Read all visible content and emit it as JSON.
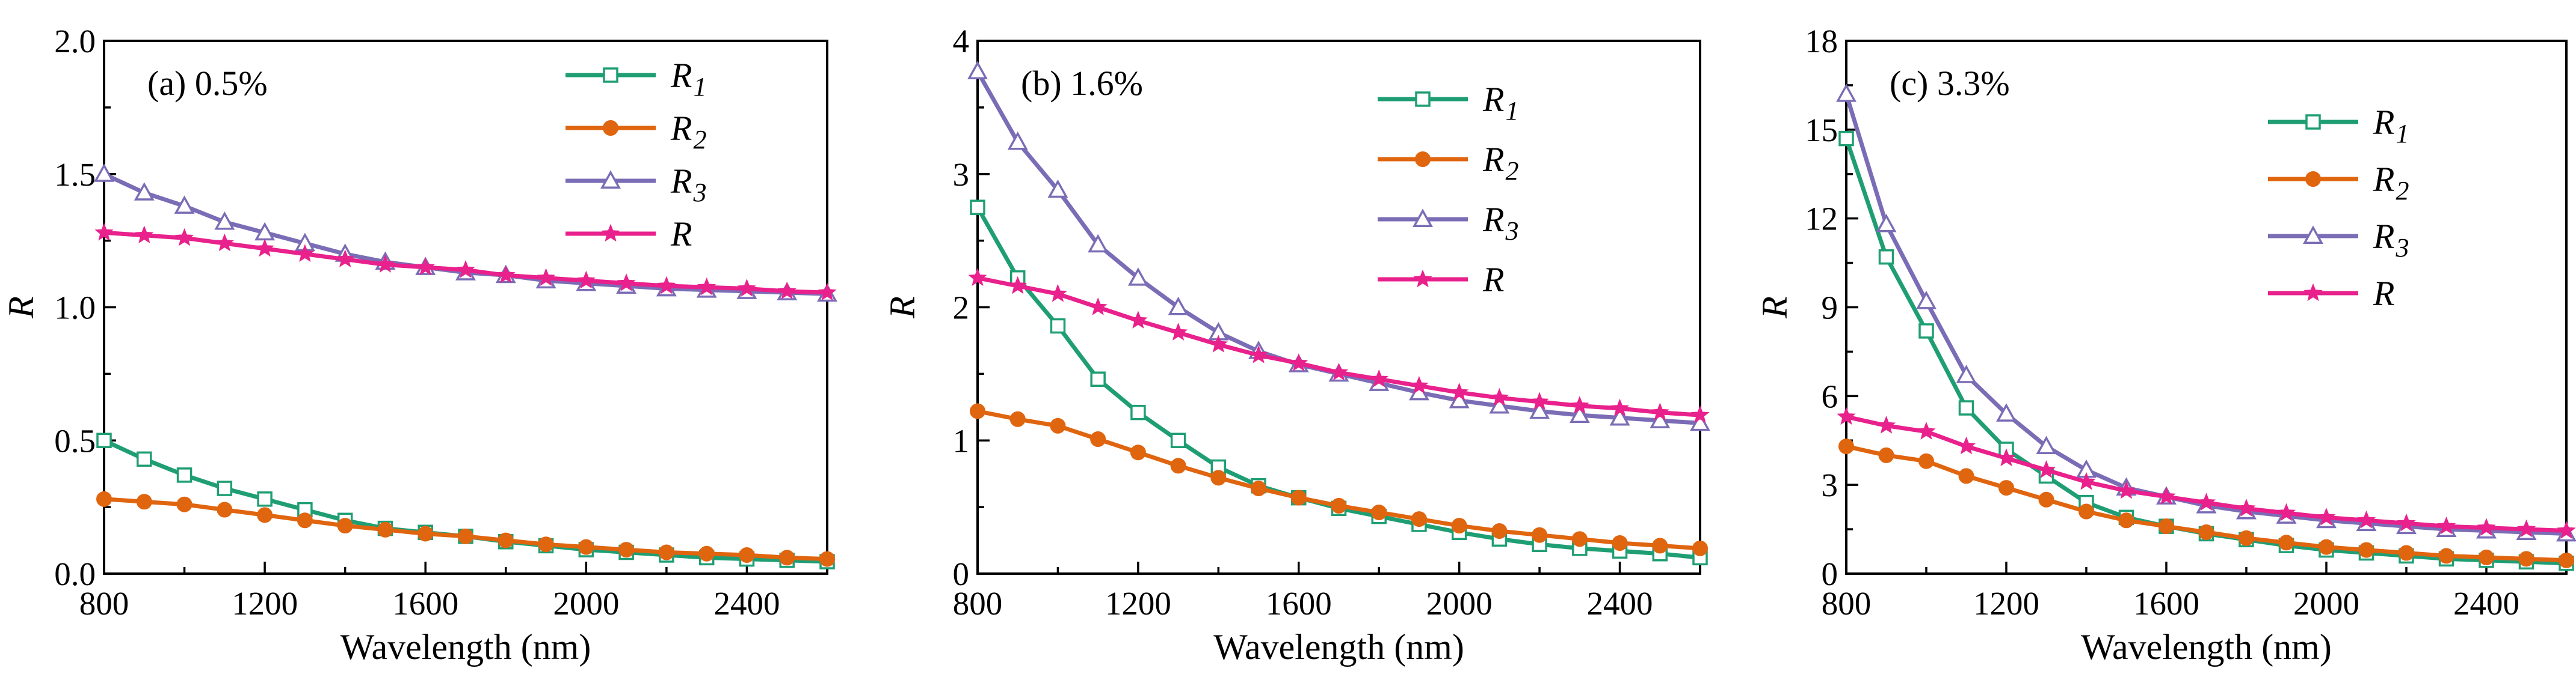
{
  "colors": {
    "R1": "#1f9e74",
    "R2": "#e0650f",
    "R3": "#7b6cb6",
    "R": "#e8218c"
  },
  "chart_data": [
    {
      "type": "line",
      "title": "(a) 0.5%",
      "xlabel": "Wavelength (nm)",
      "ylabel": "R",
      "xlim": [
        800,
        2600
      ],
      "ylim": [
        0,
        2.0
      ],
      "xticks": [
        "800",
        "1200",
        "1600",
        "2000",
        "2400"
      ],
      "yticks": [
        "0.0",
        "0.5",
        "1.0",
        "1.5",
        "2.0"
      ],
      "x": [
        800,
        900,
        1000,
        1100,
        1200,
        1300,
        1400,
        1500,
        1600,
        1700,
        1800,
        1900,
        2000,
        2100,
        2200,
        2300,
        2400,
        2500,
        2600
      ],
      "series": [
        {
          "name": "R1",
          "main": "R",
          "sub": "1",
          "marker": "square",
          "color": "#1f9e74",
          "values": [
            0.5,
            0.43,
            0.37,
            0.32,
            0.28,
            0.24,
            0.2,
            0.17,
            0.155,
            0.14,
            0.12,
            0.105,
            0.09,
            0.08,
            0.07,
            0.06,
            0.055,
            0.05,
            0.045
          ]
        },
        {
          "name": "R2",
          "main": "R",
          "sub": "2",
          "marker": "circle",
          "color": "#e0650f",
          "values": [
            0.28,
            0.27,
            0.26,
            0.24,
            0.22,
            0.2,
            0.18,
            0.165,
            0.15,
            0.14,
            0.125,
            0.11,
            0.1,
            0.09,
            0.08,
            0.075,
            0.07,
            0.06,
            0.055
          ]
        },
        {
          "name": "R3",
          "main": "R",
          "sub": "3",
          "marker": "triangle",
          "color": "#7b6cb6",
          "values": [
            1.5,
            1.43,
            1.38,
            1.32,
            1.28,
            1.24,
            1.2,
            1.17,
            1.15,
            1.13,
            1.12,
            1.1,
            1.09,
            1.08,
            1.07,
            1.065,
            1.06,
            1.055,
            1.05
          ]
        },
        {
          "name": "R",
          "main": "R",
          "sub": "",
          "marker": "star",
          "color": "#e8218c",
          "values": [
            1.28,
            1.27,
            1.26,
            1.24,
            1.22,
            1.2,
            1.18,
            1.16,
            1.15,
            1.14,
            1.12,
            1.11,
            1.1,
            1.09,
            1.08,
            1.075,
            1.07,
            1.06,
            1.055
          ]
        }
      ]
    },
    {
      "type": "line",
      "title": "(b) 1.6%",
      "xlabel": "Wavelength (nm)",
      "ylabel": "R",
      "xlim": [
        800,
        2600
      ],
      "ylim": [
        0,
        4
      ],
      "xticks": [
        "800",
        "1200",
        "1600",
        "2000",
        "2400"
      ],
      "yticks": [
        "0",
        "1",
        "2",
        "3",
        "4"
      ],
      "x": [
        800,
        900,
        1000,
        1100,
        1200,
        1300,
        1400,
        1500,
        1600,
        1700,
        1800,
        1900,
        2000,
        2100,
        2200,
        2300,
        2400,
        2500,
        2600
      ],
      "series": [
        {
          "name": "R1",
          "main": "R",
          "sub": "1",
          "marker": "square",
          "color": "#1f9e74",
          "values": [
            2.75,
            2.22,
            1.86,
            1.46,
            1.21,
            1.0,
            0.8,
            0.66,
            0.57,
            0.49,
            0.43,
            0.37,
            0.31,
            0.26,
            0.22,
            0.19,
            0.17,
            0.15,
            0.12
          ]
        },
        {
          "name": "R2",
          "main": "R",
          "sub": "2",
          "marker": "circle",
          "color": "#e0650f",
          "values": [
            1.22,
            1.16,
            1.11,
            1.01,
            0.91,
            0.81,
            0.72,
            0.64,
            0.57,
            0.51,
            0.46,
            0.41,
            0.36,
            0.32,
            0.29,
            0.26,
            0.23,
            0.21,
            0.19
          ]
        },
        {
          "name": "R3",
          "main": "R",
          "sub": "3",
          "marker": "triangle",
          "color": "#7b6cb6",
          "values": [
            3.77,
            3.24,
            2.88,
            2.47,
            2.22,
            2.0,
            1.81,
            1.67,
            1.57,
            1.5,
            1.43,
            1.36,
            1.3,
            1.26,
            1.22,
            1.19,
            1.17,
            1.15,
            1.13
          ]
        },
        {
          "name": "R",
          "main": "R",
          "sub": "",
          "marker": "star",
          "color": "#e8218c",
          "values": [
            2.22,
            2.16,
            2.1,
            2.0,
            1.9,
            1.81,
            1.72,
            1.64,
            1.58,
            1.51,
            1.46,
            1.41,
            1.36,
            1.32,
            1.29,
            1.26,
            1.24,
            1.21,
            1.19
          ]
        }
      ]
    },
    {
      "type": "line",
      "title": "(c) 3.3%",
      "xlabel": "Wavelength (nm)",
      "ylabel": "R",
      "xlim": [
        800,
        2600
      ],
      "ylim": [
        0,
        18
      ],
      "xticks": [
        "800",
        "1200",
        "1600",
        "2000",
        "2400"
      ],
      "yticks": [
        "0",
        "3",
        "6",
        "9",
        "12",
        "15",
        "18"
      ],
      "x": [
        800,
        900,
        1000,
        1100,
        1200,
        1300,
        1400,
        1500,
        1600,
        1700,
        1800,
        1900,
        2000,
        2100,
        2200,
        2300,
        2400,
        2500,
        2600
      ],
      "series": [
        {
          "name": "R1",
          "main": "R",
          "sub": "1",
          "marker": "square",
          "color": "#1f9e74",
          "values": [
            14.7,
            10.7,
            8.2,
            5.6,
            4.2,
            3.3,
            2.4,
            1.9,
            1.6,
            1.35,
            1.15,
            0.95,
            0.8,
            0.7,
            0.6,
            0.5,
            0.45,
            0.4,
            0.35
          ]
        },
        {
          "name": "R2",
          "main": "R",
          "sub": "2",
          "marker": "circle",
          "color": "#e0650f",
          "values": [
            4.3,
            4.0,
            3.8,
            3.3,
            2.9,
            2.5,
            2.1,
            1.8,
            1.6,
            1.4,
            1.2,
            1.05,
            0.9,
            0.8,
            0.7,
            0.6,
            0.55,
            0.5,
            0.45
          ]
        },
        {
          "name": "R3",
          "main": "R",
          "sub": "3",
          "marker": "triangle",
          "color": "#7b6cb6",
          "values": [
            16.2,
            11.8,
            9.2,
            6.7,
            5.4,
            4.3,
            3.5,
            2.9,
            2.6,
            2.3,
            2.1,
            1.95,
            1.8,
            1.7,
            1.6,
            1.5,
            1.45,
            1.4,
            1.35
          ]
        },
        {
          "name": "R",
          "main": "R",
          "sub": "",
          "marker": "star",
          "color": "#e8218c",
          "values": [
            5.3,
            5.0,
            4.8,
            4.3,
            3.9,
            3.5,
            3.1,
            2.8,
            2.6,
            2.4,
            2.2,
            2.05,
            1.9,
            1.8,
            1.7,
            1.6,
            1.55,
            1.5,
            1.45
          ]
        }
      ]
    }
  ]
}
